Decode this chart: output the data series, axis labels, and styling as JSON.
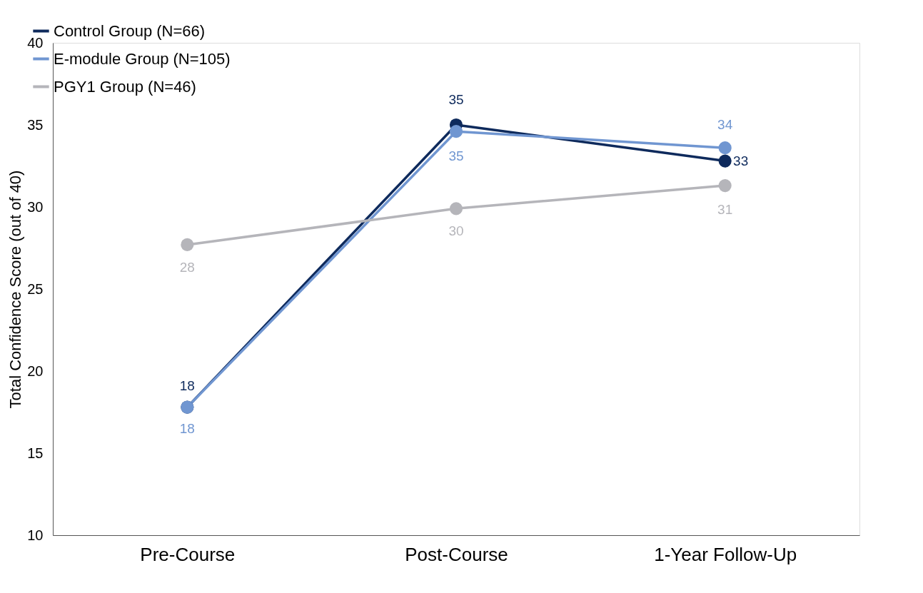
{
  "chart_data": {
    "type": "line",
    "ylabel": "Total Confidence Score (out of 40)",
    "categories": [
      "Pre-Course",
      "Post-Course",
      "1-Year Follow-Up"
    ],
    "series": [
      {
        "name": "Control Group (N=66)",
        "color": "#0e2a5c",
        "values": [
          17.8,
          35.0,
          32.8
        ],
        "value_labels": [
          "18",
          "35",
          "33"
        ]
      },
      {
        "name": "E-module Group (N=105)",
        "color": "#7096d1",
        "values": [
          17.8,
          34.6,
          33.6
        ],
        "value_labels": [
          "18",
          "35",
          "34"
        ]
      },
      {
        "name": "PGY1 Group (N=46)",
        "color": "#b5b5ba",
        "values": [
          27.7,
          29.9,
          31.3
        ],
        "value_labels": [
          "28",
          "30",
          "31"
        ]
      }
    ],
    "ylim": [
      10,
      40
    ],
    "yticks": [
      10,
      15,
      20,
      25,
      30,
      35,
      40
    ],
    "grid": false,
    "legend": "top left",
    "marker": "circle",
    "line_style": "solid"
  }
}
